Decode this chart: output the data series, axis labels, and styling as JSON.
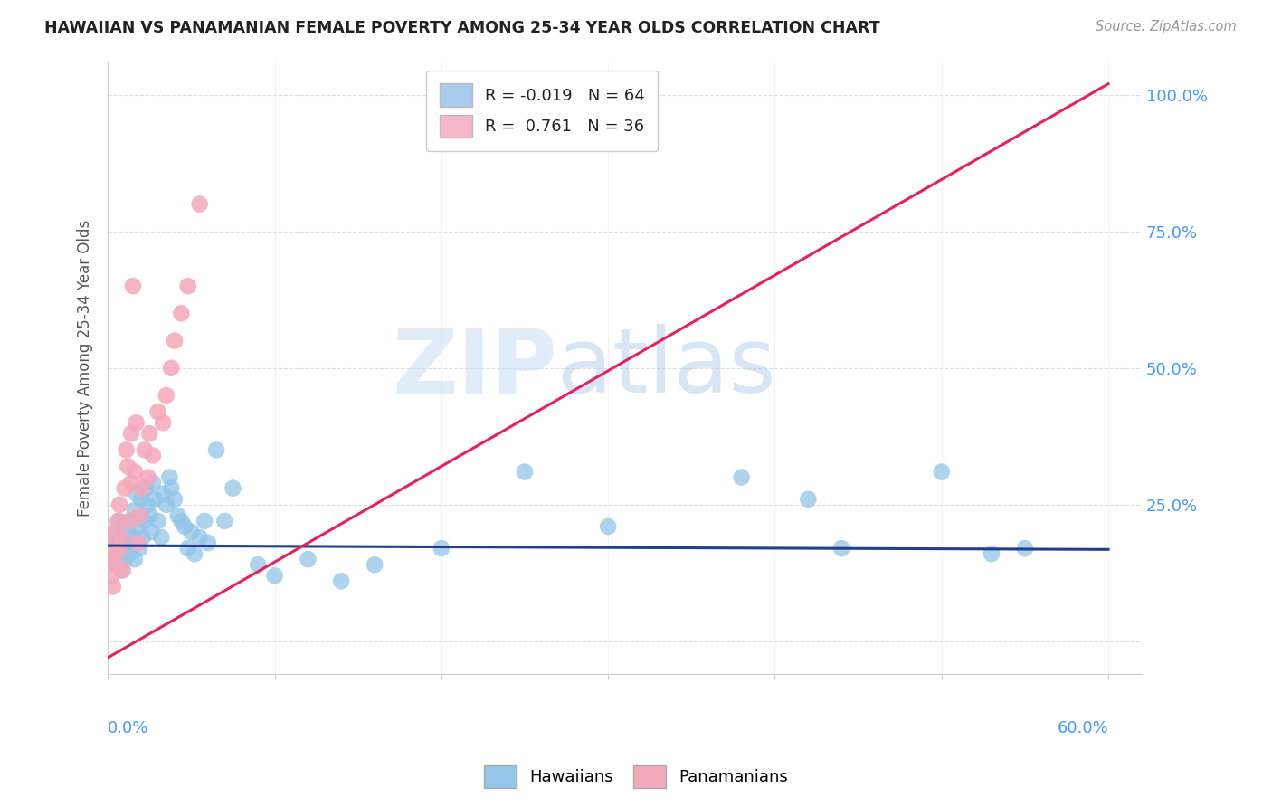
{
  "title": "HAWAIIAN VS PANAMANIAN FEMALE POVERTY AMONG 25-34 YEAR OLDS CORRELATION CHART",
  "source": "Source: ZipAtlas.com",
  "ylabel": "Female Poverty Among 25-34 Year Olds",
  "xlim": [
    0.0,
    0.62
  ],
  "ylim": [
    -0.06,
    1.06
  ],
  "yticks": [
    0.0,
    0.25,
    0.5,
    0.75,
    1.0
  ],
  "ytick_labels": [
    "",
    "25.0%",
    "50.0%",
    "75.0%",
    "100.0%"
  ],
  "hawaiians_color": "#92c5e8",
  "panamanians_color": "#f4a8bb",
  "hawaiians_line_color": "#1f3f8f",
  "panamanians_line_color": "#e82060",
  "legend_haw_color": "#aaccee",
  "legend_pan_color": "#f4b8c8",
  "watermark_zip": "ZIP",
  "watermark_atlas": "atlas",
  "hawaiians_x": [
    0.001,
    0.002,
    0.003,
    0.004,
    0.005,
    0.006,
    0.007,
    0.007,
    0.008,
    0.009,
    0.009,
    0.01,
    0.011,
    0.012,
    0.013,
    0.014,
    0.015,
    0.016,
    0.016,
    0.017,
    0.018,
    0.019,
    0.02,
    0.021,
    0.022,
    0.023,
    0.024,
    0.025,
    0.026,
    0.027,
    0.028,
    0.03,
    0.032,
    0.033,
    0.035,
    0.037,
    0.038,
    0.04,
    0.042,
    0.044,
    0.046,
    0.048,
    0.05,
    0.052,
    0.055,
    0.058,
    0.06,
    0.065,
    0.07,
    0.075,
    0.09,
    0.1,
    0.12,
    0.14,
    0.16,
    0.2,
    0.25,
    0.3,
    0.38,
    0.42,
    0.44,
    0.5,
    0.53,
    0.55
  ],
  "hawaiians_y": [
    0.17,
    0.15,
    0.18,
    0.16,
    0.2,
    0.14,
    0.19,
    0.22,
    0.13,
    0.17,
    0.21,
    0.15,
    0.18,
    0.2,
    0.16,
    0.22,
    0.19,
    0.24,
    0.15,
    0.27,
    0.21,
    0.17,
    0.26,
    0.19,
    0.22,
    0.28,
    0.25,
    0.23,
    0.2,
    0.29,
    0.26,
    0.22,
    0.19,
    0.27,
    0.25,
    0.3,
    0.28,
    0.26,
    0.23,
    0.22,
    0.21,
    0.17,
    0.2,
    0.16,
    0.19,
    0.22,
    0.18,
    0.35,
    0.22,
    0.28,
    0.14,
    0.12,
    0.15,
    0.11,
    0.14,
    0.17,
    0.31,
    0.21,
    0.3,
    0.26,
    0.17,
    0.31,
    0.16,
    0.17
  ],
  "hawaiians_y_below": [
    0,
    0,
    0,
    0,
    0,
    0,
    0,
    0,
    0,
    0,
    0,
    0,
    0,
    0,
    0,
    0,
    0,
    0,
    0,
    0,
    0,
    0,
    0,
    0,
    0,
    0,
    0,
    0,
    0,
    0,
    0,
    0,
    0,
    0,
    0,
    0,
    0,
    0,
    0,
    0,
    0,
    0,
    0,
    0,
    0,
    0,
    0,
    0,
    0,
    0,
    0,
    0,
    0,
    0,
    0,
    0,
    0,
    0,
    0,
    0,
    0,
    0,
    0,
    0
  ],
  "panamanians_x": [
    0.001,
    0.002,
    0.003,
    0.003,
    0.004,
    0.004,
    0.005,
    0.006,
    0.007,
    0.007,
    0.008,
    0.009,
    0.01,
    0.011,
    0.012,
    0.013,
    0.014,
    0.014,
    0.015,
    0.016,
    0.017,
    0.018,
    0.019,
    0.02,
    0.022,
    0.024,
    0.025,
    0.027,
    0.03,
    0.033,
    0.035,
    0.038,
    0.04,
    0.044,
    0.048,
    0.055
  ],
  "panamanians_y": [
    0.15,
    0.12,
    0.18,
    0.1,
    0.16,
    0.2,
    0.14,
    0.22,
    0.17,
    0.25,
    0.19,
    0.13,
    0.28,
    0.35,
    0.32,
    0.22,
    0.38,
    0.29,
    0.65,
    0.31,
    0.4,
    0.18,
    0.23,
    0.28,
    0.35,
    0.3,
    0.38,
    0.34,
    0.42,
    0.4,
    0.45,
    0.5,
    0.55,
    0.6,
    0.65,
    0.8
  ],
  "haw_trendline": [
    0.0,
    0.6,
    0.175,
    0.168
  ],
  "pan_trendline": [
    0.0,
    0.6,
    -0.03,
    1.02
  ],
  "grid_color": "#dddddd",
  "spine_color": "#cccccc"
}
